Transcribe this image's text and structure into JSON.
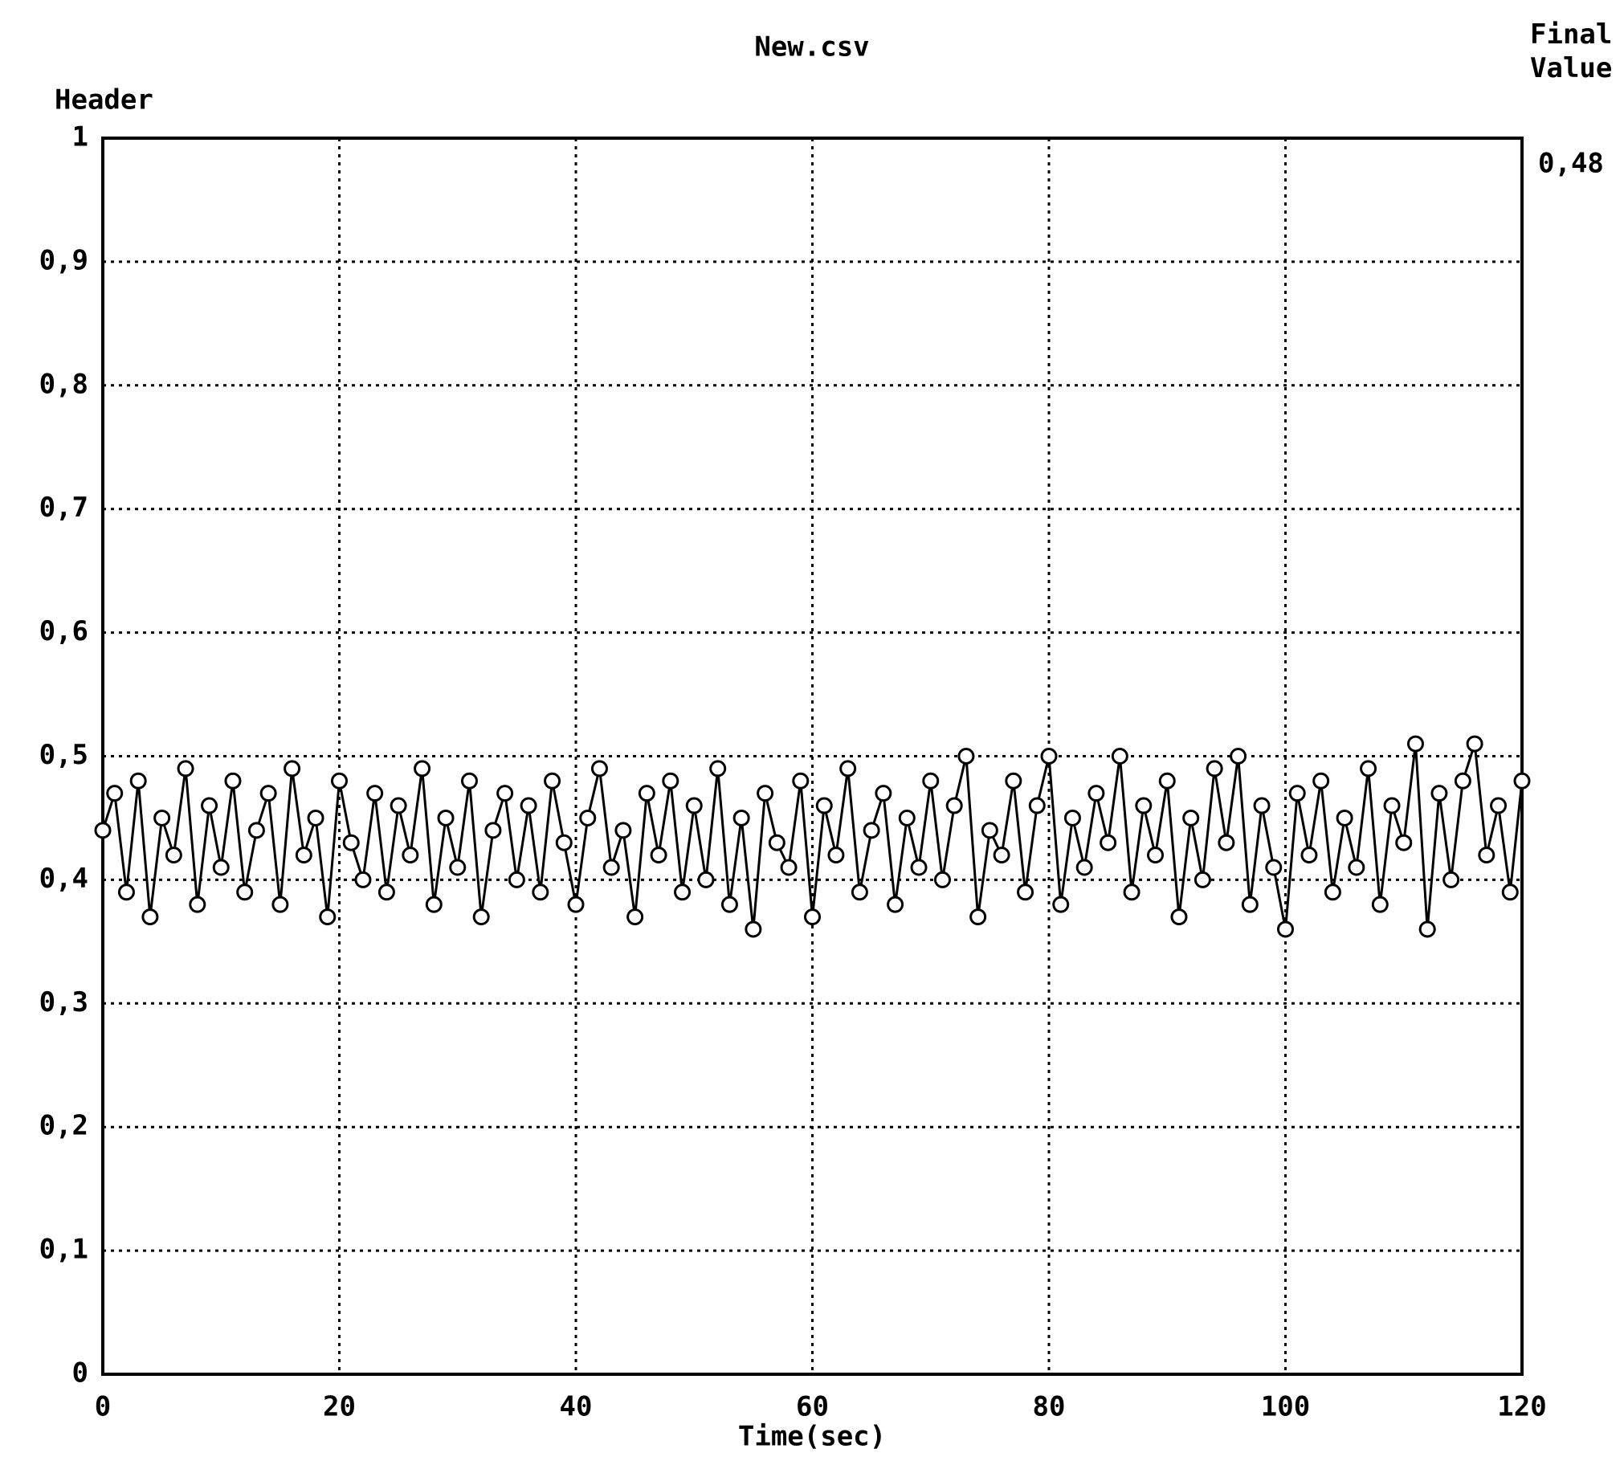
{
  "chart_data": {
    "type": "line",
    "title": "New.csv",
    "ylabel": "Header",
    "xlabel": "Time(sec)",
    "final_value_label": "Final Value",
    "final_value": "0,48",
    "x": [
      0,
      1,
      2,
      3,
      4,
      5,
      6,
      7,
      8,
      9,
      10,
      11,
      12,
      13,
      14,
      15,
      16,
      17,
      18,
      19,
      20,
      21,
      22,
      23,
      24,
      25,
      26,
      27,
      28,
      29,
      30,
      31,
      32,
      33,
      34,
      35,
      36,
      37,
      38,
      39,
      40,
      41,
      42,
      43,
      44,
      45,
      46,
      47,
      48,
      49,
      50,
      51,
      52,
      53,
      54,
      55,
      56,
      57,
      58,
      59,
      60,
      61,
      62,
      63,
      64,
      65,
      66,
      67,
      68,
      69,
      70,
      71,
      72,
      73,
      74,
      75,
      76,
      77,
      78,
      79,
      80,
      81,
      82,
      83,
      84,
      85,
      86,
      87,
      88,
      89,
      90,
      91,
      92,
      93,
      94,
      95,
      96,
      97,
      98,
      99,
      100,
      101,
      102,
      103,
      104,
      105,
      106,
      107,
      108,
      109,
      110,
      111,
      112,
      113,
      114,
      115,
      116,
      117,
      118,
      119,
      120
    ],
    "series": [
      {
        "color": "#000000",
        "values": [
          0.44,
          0.47,
          0.39,
          0.48,
          0.37,
          0.45,
          0.42,
          0.49,
          0.38,
          0.46,
          0.41,
          0.48,
          0.39,
          0.44,
          0.47,
          0.38,
          0.49,
          0.42,
          0.45,
          0.37,
          0.48,
          0.43,
          0.4,
          0.47,
          0.39,
          0.46,
          0.42,
          0.49,
          0.38,
          0.45,
          0.41,
          0.48,
          0.37,
          0.44,
          0.47,
          0.4,
          0.46,
          0.39,
          0.48,
          0.43,
          0.38,
          0.45,
          0.49,
          0.41,
          0.44,
          0.37,
          0.47,
          0.42,
          0.48,
          0.39,
          0.46,
          0.4,
          0.49,
          0.38,
          0.45,
          0.36,
          0.47,
          0.43,
          0.41,
          0.48,
          0.37,
          0.46,
          0.42,
          0.49,
          0.39,
          0.44,
          0.47,
          0.38,
          0.45,
          0.41,
          0.48,
          0.4,
          0.46,
          0.5,
          0.37,
          0.44,
          0.42,
          0.48,
          0.39,
          0.46,
          0.5,
          0.38,
          0.45,
          0.41,
          0.47,
          0.43,
          0.5,
          0.39,
          0.46,
          0.42,
          0.48,
          0.37,
          0.45,
          0.4,
          0.49,
          0.43,
          0.5,
          0.38,
          0.46,
          0.41,
          0.36,
          0.47,
          0.42,
          0.48,
          0.39,
          0.45,
          0.41,
          0.49,
          0.38,
          0.46,
          0.43,
          0.51,
          0.36,
          0.47,
          0.4,
          0.48,
          0.51,
          0.42,
          0.46,
          0.39,
          0.48
        ]
      }
    ],
    "xlim": [
      0,
      120
    ],
    "xticks": [
      0,
      20,
      40,
      60,
      80,
      100,
      120
    ],
    "ylim": [
      0,
      1
    ],
    "yticks": [
      0,
      {
        "value": 0.1,
        "label": "0,1"
      },
      {
        "value": 0.2,
        "label": "0,2"
      },
      {
        "value": 0.3,
        "label": "0,3"
      },
      {
        "value": 0.4,
        "label": "0,4"
      },
      {
        "value": 0.5,
        "label": "0,5"
      },
      {
        "value": 0.6,
        "label": "0,6"
      },
      {
        "value": 0.7,
        "label": "0,7"
      },
      {
        "value": 0.8,
        "label": "0,8"
      },
      {
        "value": 0.9,
        "label": "0,9"
      },
      1
    ],
    "grid": true
  }
}
